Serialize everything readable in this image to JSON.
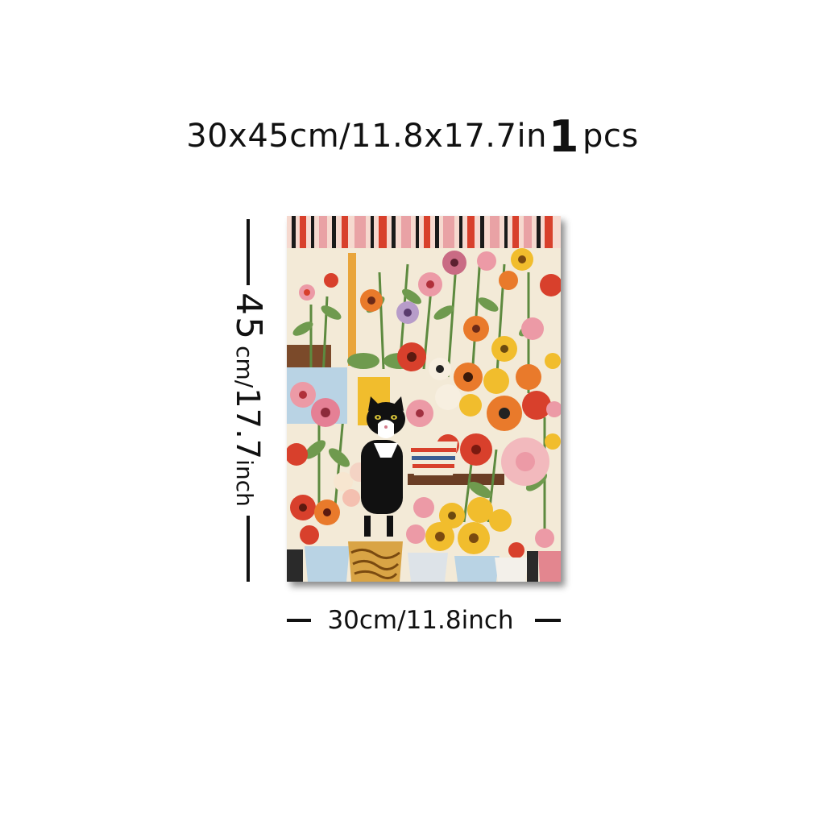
{
  "header": {
    "size_text": "30x45cm/11.8x17.7in",
    "quantity_number": "1",
    "quantity_unit": "pcs"
  },
  "dimensions": {
    "width_label": "30cm/11.8inch",
    "height_number": "45",
    "height_unit_pre": "cm/",
    "height_value": "17.7",
    "height_unit_post": "inch"
  },
  "artwork": {
    "subject": "cat-in-flower-shop-painting",
    "colors": {
      "background": "#f3ead7",
      "cat": "#111111",
      "red": "#d8402c",
      "orange": "#e97a2b",
      "yellow": "#f1bd2d",
      "pink": "#ec9aa6",
      "leaf": "#6f9a4e",
      "pot_blue": "#b9d3e4"
    }
  }
}
